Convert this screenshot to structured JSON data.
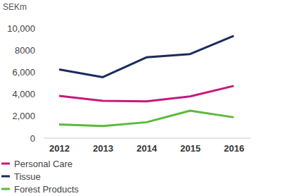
{
  "chart_data": {
    "type": "line",
    "y_label": "SEKm",
    "categories": [
      "2012",
      "2013",
      "2014",
      "2015",
      "2016"
    ],
    "series": [
      {
        "name": "Personal Care",
        "color": "#c8187c",
        "values": [
          3850,
          3400,
          3350,
          3800,
          4750
        ]
      },
      {
        "name": "Tissue",
        "color": "#1b2b5c",
        "values": [
          6250,
          5550,
          7350,
          7650,
          9300
        ]
      },
      {
        "name": "Forest Products",
        "color": "#5cb83e",
        "values": [
          1250,
          1100,
          1450,
          2500,
          1900
        ]
      }
    ],
    "ylim": [
      0,
      10000
    ],
    "yticks": [
      0,
      {
        "value": 2000,
        "label": "2,000"
      },
      {
        "value": 4000,
        "label": "4,000"
      },
      {
        "value": 6000,
        "label": "6,000"
      },
      8000,
      {
        "value": 10000,
        "label": "10,000"
      }
    ],
    "grid": false,
    "legend": "bottom-left"
  }
}
